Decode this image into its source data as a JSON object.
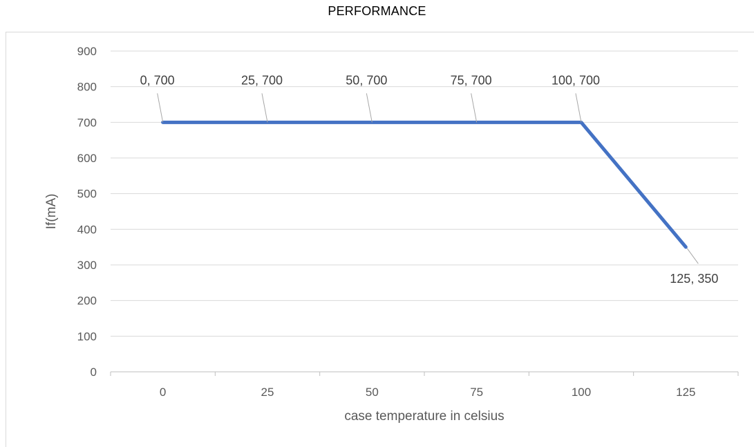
{
  "chart_data": {
    "type": "line",
    "title": "PERFORMANCE",
    "xlabel": "case temperature in celsius",
    "ylabel": "If(mA)",
    "categories": [
      "0",
      "25",
      "50",
      "75",
      "100",
      "125"
    ],
    "x": [
      0,
      25,
      50,
      75,
      100,
      125
    ],
    "series": [
      {
        "values": [
          700,
          700,
          700,
          700,
          700,
          350
        ],
        "color": "#4472c4"
      }
    ],
    "data_labels": [
      "0, 700",
      "25, 700",
      "50, 700",
      "75, 700",
      "100, 700",
      "125, 350"
    ],
    "yticks": [
      "0",
      "100",
      "200",
      "300",
      "400",
      "500",
      "600",
      "700",
      "800",
      "900"
    ],
    "ylim": [
      0,
      900
    ],
    "grid": true,
    "legend": "none"
  }
}
